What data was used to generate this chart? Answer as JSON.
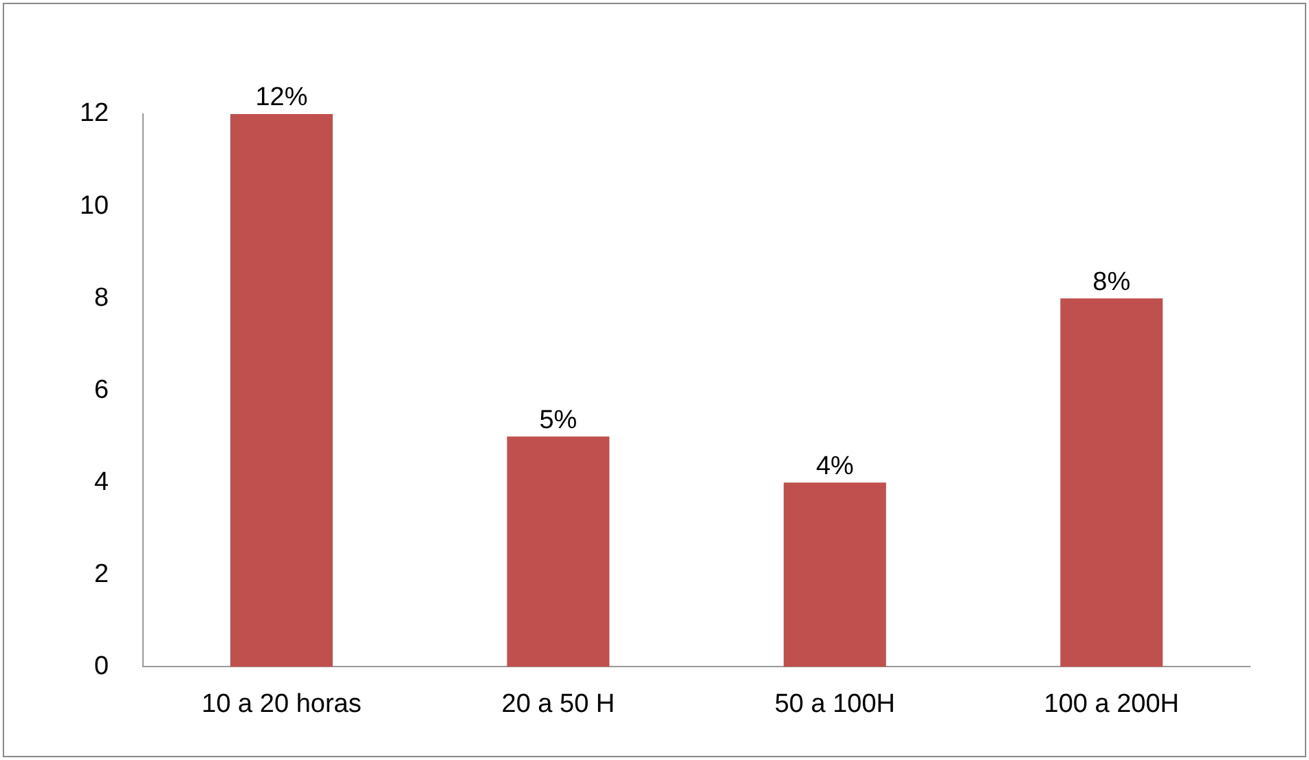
{
  "chart_data": {
    "type": "bar",
    "categories": [
      "10 a 20 horas",
      "20 a 50 H",
      "50 a 100H",
      "100 a 200H"
    ],
    "values": [
      12,
      5,
      4,
      8
    ],
    "value_labels": [
      "12%",
      "5%",
      "4%",
      "8%"
    ],
    "color": "#c0504d",
    "ylim": [
      0,
      12
    ],
    "yticks": [
      0,
      2,
      4,
      6,
      8,
      10,
      12
    ],
    "grid": false,
    "legend": false
  }
}
